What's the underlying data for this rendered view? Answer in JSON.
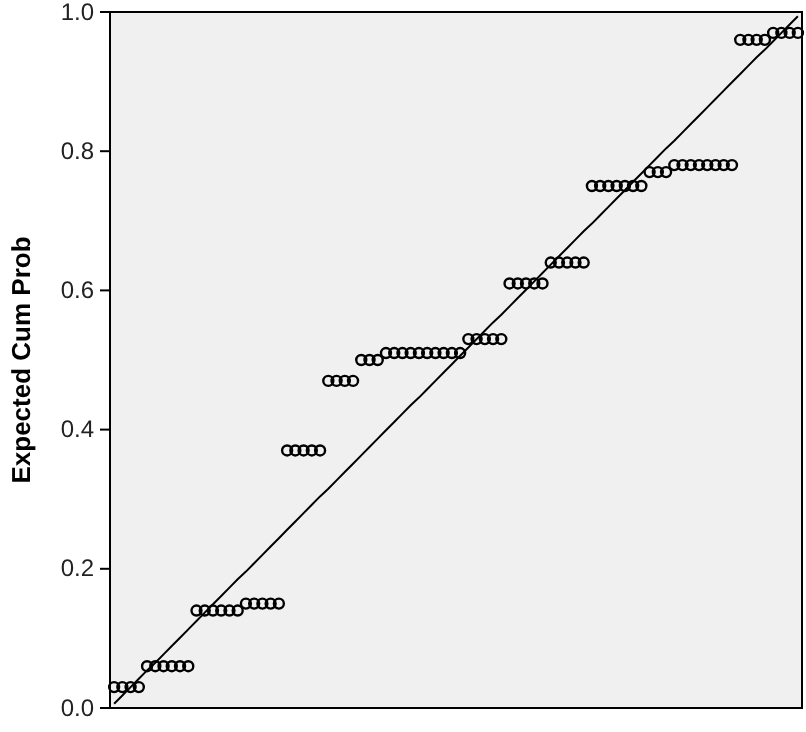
{
  "chart_data": {
    "type": "scatter",
    "ylabel": "Expected Cum Prob",
    "marker": "circle",
    "tick_labels": "y",
    "categories": [
      null,
      null,
      null,
      null,
      null,
      null,
      null,
      null,
      null,
      null,
      null,
      null,
      null,
      null,
      null,
      null,
      null,
      null,
      null,
      null,
      null,
      null,
      null,
      null,
      null,
      null,
      null,
      null,
      null,
      null,
      null,
      null,
      null,
      null,
      null,
      null,
      null,
      null,
      null,
      null,
      null,
      null,
      null,
      null,
      null,
      null,
      null,
      null,
      null,
      null,
      null,
      null,
      null,
      null,
      null,
      null,
      null,
      null,
      null,
      null,
      null,
      null,
      null,
      null,
      null,
      null,
      null,
      null,
      null,
      null,
      null,
      null,
      null,
      null,
      null,
      null,
      null,
      null,
      null,
      null,
      null,
      null,
      null,
      null
    ],
    "ylim": [
      0,
      1
    ],
    "yticks": [
      {
        "value": 0,
        "label": "0.0"
      },
      {
        "value": 0.2,
        "label": "0.2"
      },
      {
        "value": 0.4,
        "label": "0.4"
      },
      {
        "value": 0.6,
        "label": "0.6"
      },
      {
        "value": 0.8,
        "label": "0.8"
      },
      {
        "value": 1,
        "label": "1.0"
      }
    ],
    "series": [
      {
        "color": "#000000",
        "values": [
          0.03,
          0.03,
          0.03,
          0.03,
          0.06,
          0.06,
          0.06,
          0.06,
          0.06,
          0.06,
          0.14,
          0.14,
          0.14,
          0.14,
          0.14,
          0.14,
          0.15,
          0.15,
          0.15,
          0.15,
          0.15,
          0.37,
          0.37,
          0.37,
          0.37,
          0.37,
          0.47,
          0.47,
          0.47,
          0.47,
          0.5,
          0.5,
          0.5,
          0.51,
          0.51,
          0.51,
          0.51,
          0.51,
          0.51,
          0.51,
          0.51,
          0.51,
          0.51,
          0.53,
          0.53,
          0.53,
          0.53,
          0.53,
          0.61,
          0.61,
          0.61,
          0.61,
          0.61,
          0.64,
          0.64,
          0.64,
          0.64,
          0.64,
          0.75,
          0.75,
          0.75,
          0.75,
          0.75,
          0.75,
          0.75,
          0.77,
          0.77,
          0.77,
          0.78,
          0.78,
          0.78,
          0.78,
          0.78,
          0.78,
          0.78,
          0.78,
          0.96,
          0.96,
          0.96,
          0.96,
          0.97,
          0.97,
          0.97,
          0.97
        ]
      },
      {
        "type": "line",
        "color": "#000000",
        "marker": "none",
        "values": [
          0.006,
          0.018,
          0.03,
          0.042,
          0.054,
          0.065,
          0.077,
          0.089,
          0.101,
          0.113,
          0.125,
          0.137,
          0.149,
          0.161,
          0.173,
          0.185,
          0.196,
          0.208,
          0.22,
          0.232,
          0.244,
          0.256,
          0.268,
          0.28,
          0.292,
          0.304,
          0.315,
          0.327,
          0.339,
          0.351,
          0.363,
          0.375,
          0.387,
          0.399,
          0.411,
          0.423,
          0.435,
          0.446,
          0.458,
          0.47,
          0.482,
          0.494,
          0.506,
          0.518,
          0.53,
          0.542,
          0.554,
          0.565,
          0.577,
          0.589,
          0.601,
          0.613,
          0.625,
          0.637,
          0.649,
          0.661,
          0.673,
          0.685,
          0.696,
          0.708,
          0.72,
          0.732,
          0.744,
          0.756,
          0.768,
          0.78,
          0.792,
          0.804,
          0.815,
          0.827,
          0.839,
          0.851,
          0.863,
          0.875,
          0.887,
          0.899,
          0.911,
          0.923,
          0.935,
          0.946,
          0.958,
          0.97,
          0.982,
          0.994
        ]
      }
    ]
  }
}
